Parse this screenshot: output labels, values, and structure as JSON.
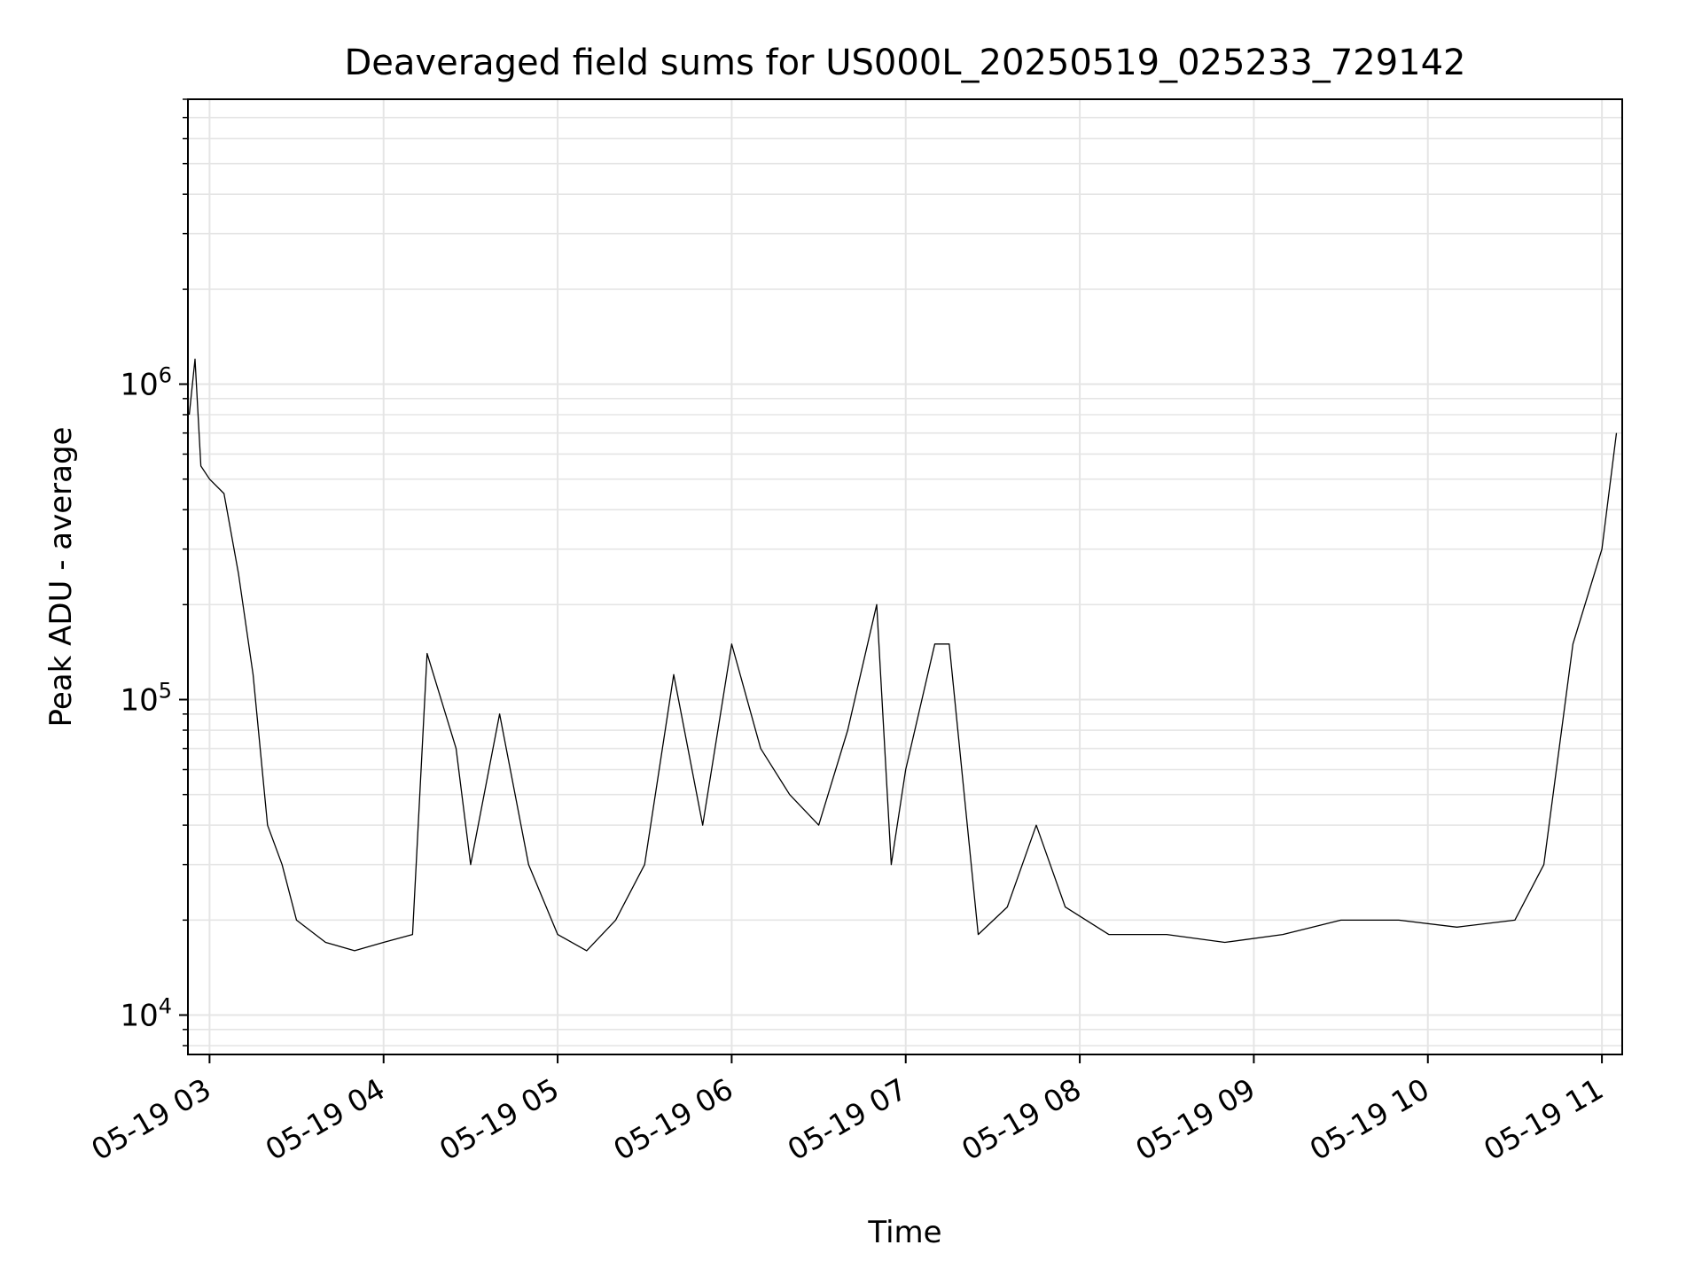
{
  "chart_data": {
    "type": "line",
    "title": "Deaveraged field sums for US000L_20250519_025233_729142",
    "xlabel": "Time",
    "ylabel": "Peak ADU - average",
    "yscale": "log",
    "ylim": [
      7500,
      8000000
    ],
    "xlim": [
      "2025-05-19 02:52:33",
      "2025-05-19 11:07:00"
    ],
    "grid": true,
    "x_ticks": [
      "2025-05-19 03:00",
      "2025-05-19 04:00",
      "2025-05-19 05:00",
      "2025-05-19 06:00",
      "2025-05-19 07:00",
      "2025-05-19 08:00",
      "2025-05-19 09:00",
      "2025-05-19 10:00",
      "2025-05-19 11:00"
    ],
    "x_tick_labels": [
      "05-19 03",
      "05-19 04",
      "05-19 05",
      "05-19 06",
      "05-19 07",
      "05-19 08",
      "05-19 09",
      "05-19 10",
      "05-19 11"
    ],
    "y_ticks": [
      10000,
      100000,
      1000000
    ],
    "y_tick_labels": [
      {
        "base": "10",
        "exp": "4"
      },
      {
        "base": "10",
        "exp": "5"
      },
      {
        "base": "10",
        "exp": "6"
      }
    ],
    "series": [
      {
        "color": "#000000",
        "points": [
          [
            "2025-05-19 02:53",
            800000
          ],
          [
            "2025-05-19 02:55",
            1200000
          ],
          [
            "2025-05-19 02:57",
            550000
          ],
          [
            "2025-05-19 03:00",
            500000
          ],
          [
            "2025-05-19 03:05",
            450000
          ],
          [
            "2025-05-19 03:10",
            250000
          ],
          [
            "2025-05-19 03:15",
            120000
          ],
          [
            "2025-05-19 03:20",
            40000
          ],
          [
            "2025-05-19 03:25",
            30000
          ],
          [
            "2025-05-19 03:30",
            20000
          ],
          [
            "2025-05-19 03:40",
            17000
          ],
          [
            "2025-05-19 03:50",
            16000
          ],
          [
            "2025-05-19 04:00",
            17000
          ],
          [
            "2025-05-19 04:10",
            18000
          ],
          [
            "2025-05-19 04:15",
            140000
          ],
          [
            "2025-05-19 04:25",
            70000
          ],
          [
            "2025-05-19 04:30",
            30000
          ],
          [
            "2025-05-19 04:40",
            90000
          ],
          [
            "2025-05-19 04:50",
            30000
          ],
          [
            "2025-05-19 05:00",
            18000
          ],
          [
            "2025-05-19 05:10",
            16000
          ],
          [
            "2025-05-19 05:20",
            20000
          ],
          [
            "2025-05-19 05:30",
            30000
          ],
          [
            "2025-05-19 05:40",
            120000
          ],
          [
            "2025-05-19 05:50",
            40000
          ],
          [
            "2025-05-19 06:00",
            150000
          ],
          [
            "2025-05-19 06:10",
            70000
          ],
          [
            "2025-05-19 06:20",
            50000
          ],
          [
            "2025-05-19 06:30",
            40000
          ],
          [
            "2025-05-19 06:40",
            80000
          ],
          [
            "2025-05-19 06:50",
            200000
          ],
          [
            "2025-05-19 06:55",
            30000
          ],
          [
            "2025-05-19 07:00",
            60000
          ],
          [
            "2025-05-19 07:10",
            150000
          ],
          [
            "2025-05-19 07:15",
            150000
          ],
          [
            "2025-05-19 07:25",
            18000
          ],
          [
            "2025-05-19 07:35",
            22000
          ],
          [
            "2025-05-19 07:45",
            40000
          ],
          [
            "2025-05-19 07:55",
            22000
          ],
          [
            "2025-05-19 08:10",
            18000
          ],
          [
            "2025-05-19 08:30",
            18000
          ],
          [
            "2025-05-19 08:50",
            17000
          ],
          [
            "2025-05-19 09:10",
            18000
          ],
          [
            "2025-05-19 09:30",
            20000
          ],
          [
            "2025-05-19 09:50",
            20000
          ],
          [
            "2025-05-19 10:10",
            19000
          ],
          [
            "2025-05-19 10:30",
            20000
          ],
          [
            "2025-05-19 10:40",
            30000
          ],
          [
            "2025-05-19 10:50",
            150000
          ],
          [
            "2025-05-19 11:00",
            300000
          ],
          [
            "2025-05-19 11:05",
            700000
          ]
        ]
      }
    ]
  }
}
